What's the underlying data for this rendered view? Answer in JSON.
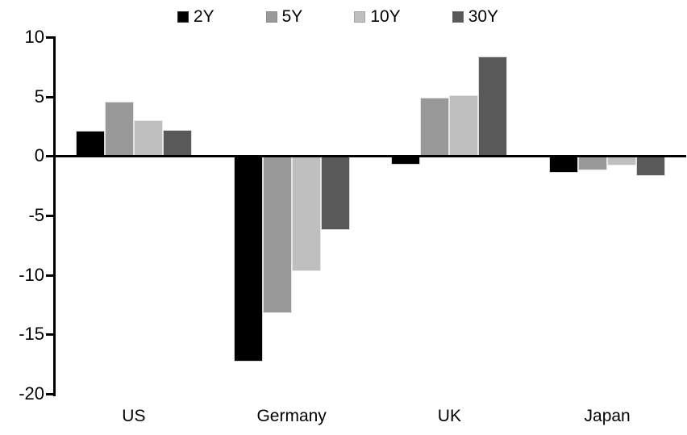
{
  "chart_data": {
    "type": "bar",
    "title": "",
    "categories": [
      "US",
      "Germany",
      "UK",
      "Japan"
    ],
    "series": [
      {
        "name": "2Y",
        "color": "#000000",
        "values": [
          2.1,
          -17.3,
          -0.7,
          -1.4
        ]
      },
      {
        "name": "5Y",
        "color": "#999999",
        "values": [
          4.6,
          -13.2,
          4.9,
          -1.2
        ]
      },
      {
        "name": "10Y",
        "color": "#bfbfbf",
        "values": [
          3.0,
          -9.7,
          5.1,
          -0.8
        ]
      },
      {
        "name": "30Y",
        "color": "#595959",
        "values": [
          2.2,
          -6.2,
          8.4,
          -1.7
        ]
      }
    ],
    "y_axis": {
      "min": -20,
      "max": 10,
      "tick_step": 5,
      "tick_labels": [
        "10",
        "5",
        "0",
        "-5",
        "-10",
        "-15",
        "-20"
      ]
    },
    "legend_position": "top-center",
    "grid": false,
    "axis_color": "#000000",
    "background_color": "#ffffff"
  }
}
